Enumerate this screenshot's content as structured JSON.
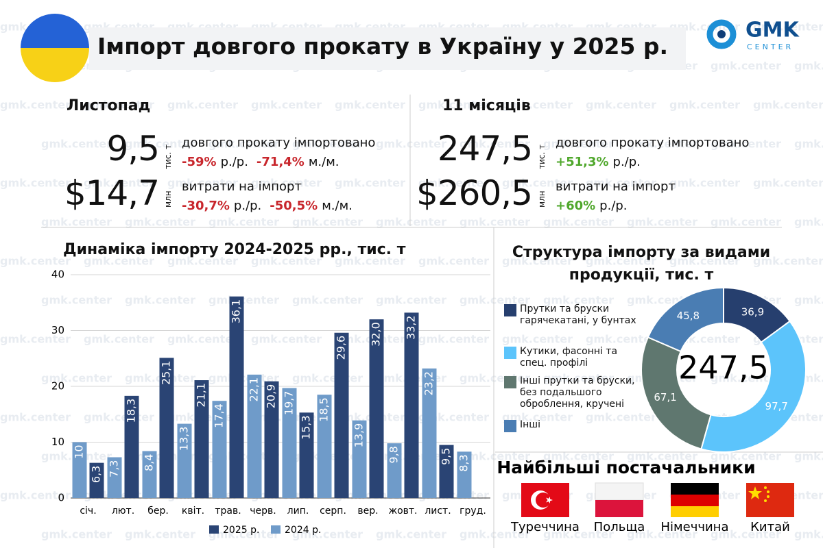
{
  "header": {
    "title": "Імпорт довгого прокату в Україну у 2025 р.",
    "logo": "GMK",
    "logo_sub": "CENTER"
  },
  "watermark": "gmk.center",
  "november": {
    "title": "Листопад",
    "volume": {
      "value": "9,5",
      "unit": "тис. т",
      "text": "довгого прокату імпортовано",
      "changes": [
        {
          "value": "-59%",
          "label": "р./р.",
          "color": "#c8262c"
        },
        {
          "value": "-71,4%",
          "label": "м./м.",
          "color": "#c8262c"
        }
      ]
    },
    "cost": {
      "value": "$14,7",
      "unit": "млн",
      "text": "витрати на імпорт",
      "changes": [
        {
          "value": "-30,7%",
          "label": "р./р.",
          "color": "#c8262c"
        },
        {
          "value": "-50,5%",
          "label": "м./м.",
          "color": "#c8262c"
        }
      ]
    }
  },
  "eleven_months": {
    "title": "11 місяців",
    "volume": {
      "value": "247,5",
      "unit": "тис. т",
      "text": "довгого прокату імпортовано",
      "changes": [
        {
          "value": "+51,3%",
          "label": "р./р.",
          "color": "#4fa72b"
        }
      ]
    },
    "cost": {
      "value": "$260,5",
      "unit": "млн",
      "text": "витрати на імпорт",
      "changes": [
        {
          "value": "+60%",
          "label": "р./р.",
          "color": "#4fa72b"
        }
      ]
    }
  },
  "chart_data": [
    {
      "type": "bar",
      "title": "Динаміка імпорту 2024-2025 рр., тис. т",
      "categories": [
        "січ.",
        "лют.",
        "бер.",
        "квіт.",
        "трав.",
        "черв.",
        "лип.",
        "серп.",
        "вер.",
        "жовт.",
        "лист.",
        "груд."
      ],
      "series": [
        {
          "name": "2024 р.",
          "color": "#6f9bc9",
          "values": [
            10,
            7.3,
            8.4,
            13.3,
            17.4,
            22.1,
            19.7,
            18.5,
            13.9,
            9.8,
            23.2,
            8.3
          ],
          "value_labels": [
            "10",
            "7,3",
            "8,4",
            "13,3",
            "17,4",
            "22,1",
            "19,7",
            "18,5",
            "13,9",
            "9,8",
            "23,2",
            "8,3"
          ]
        },
        {
          "name": "2025 р.",
          "color": "#2a4474",
          "values": [
            6.3,
            18.3,
            25.1,
            21.1,
            36.1,
            20.9,
            15.3,
            29.6,
            32.0,
            33.2,
            9.5,
            null
          ],
          "value_labels": [
            "6,3",
            "18,3",
            "25,1",
            "21,1",
            "36,1",
            "20,9",
            "15,3",
            "29,6",
            "32,0",
            "33,2",
            "9,5",
            null
          ]
        }
      ],
      "legend_order": [
        1,
        0
      ],
      "ylim": [
        0,
        40
      ],
      "yticks": [
        0,
        10,
        20,
        30,
        40
      ],
      "grid": true
    },
    {
      "type": "pie",
      "title": "Структура імпорту за видами продукції, тис. т",
      "categories": [
        "Прутки та бруски гарячекатані, у бунтах",
        "Кутики, фасонні та спец. профілі",
        "Інші прутки та бруски, без подальшого оброблення, кручені",
        "Інші"
      ],
      "values": [
        36.9,
        97.7,
        67.1,
        45.8
      ],
      "value_labels": [
        "36,9",
        "97,7",
        "67,1",
        "45,8"
      ],
      "colors": [
        "#263f6e",
        "#5cc4fb",
        "#5f776f",
        "#4a7db3"
      ],
      "center_label": "247,5"
    }
  ],
  "suppliers": {
    "title": "Найбільші постачальники",
    "countries": [
      "Туреччина",
      "Польща",
      "Німеччина",
      "Китай"
    ]
  }
}
